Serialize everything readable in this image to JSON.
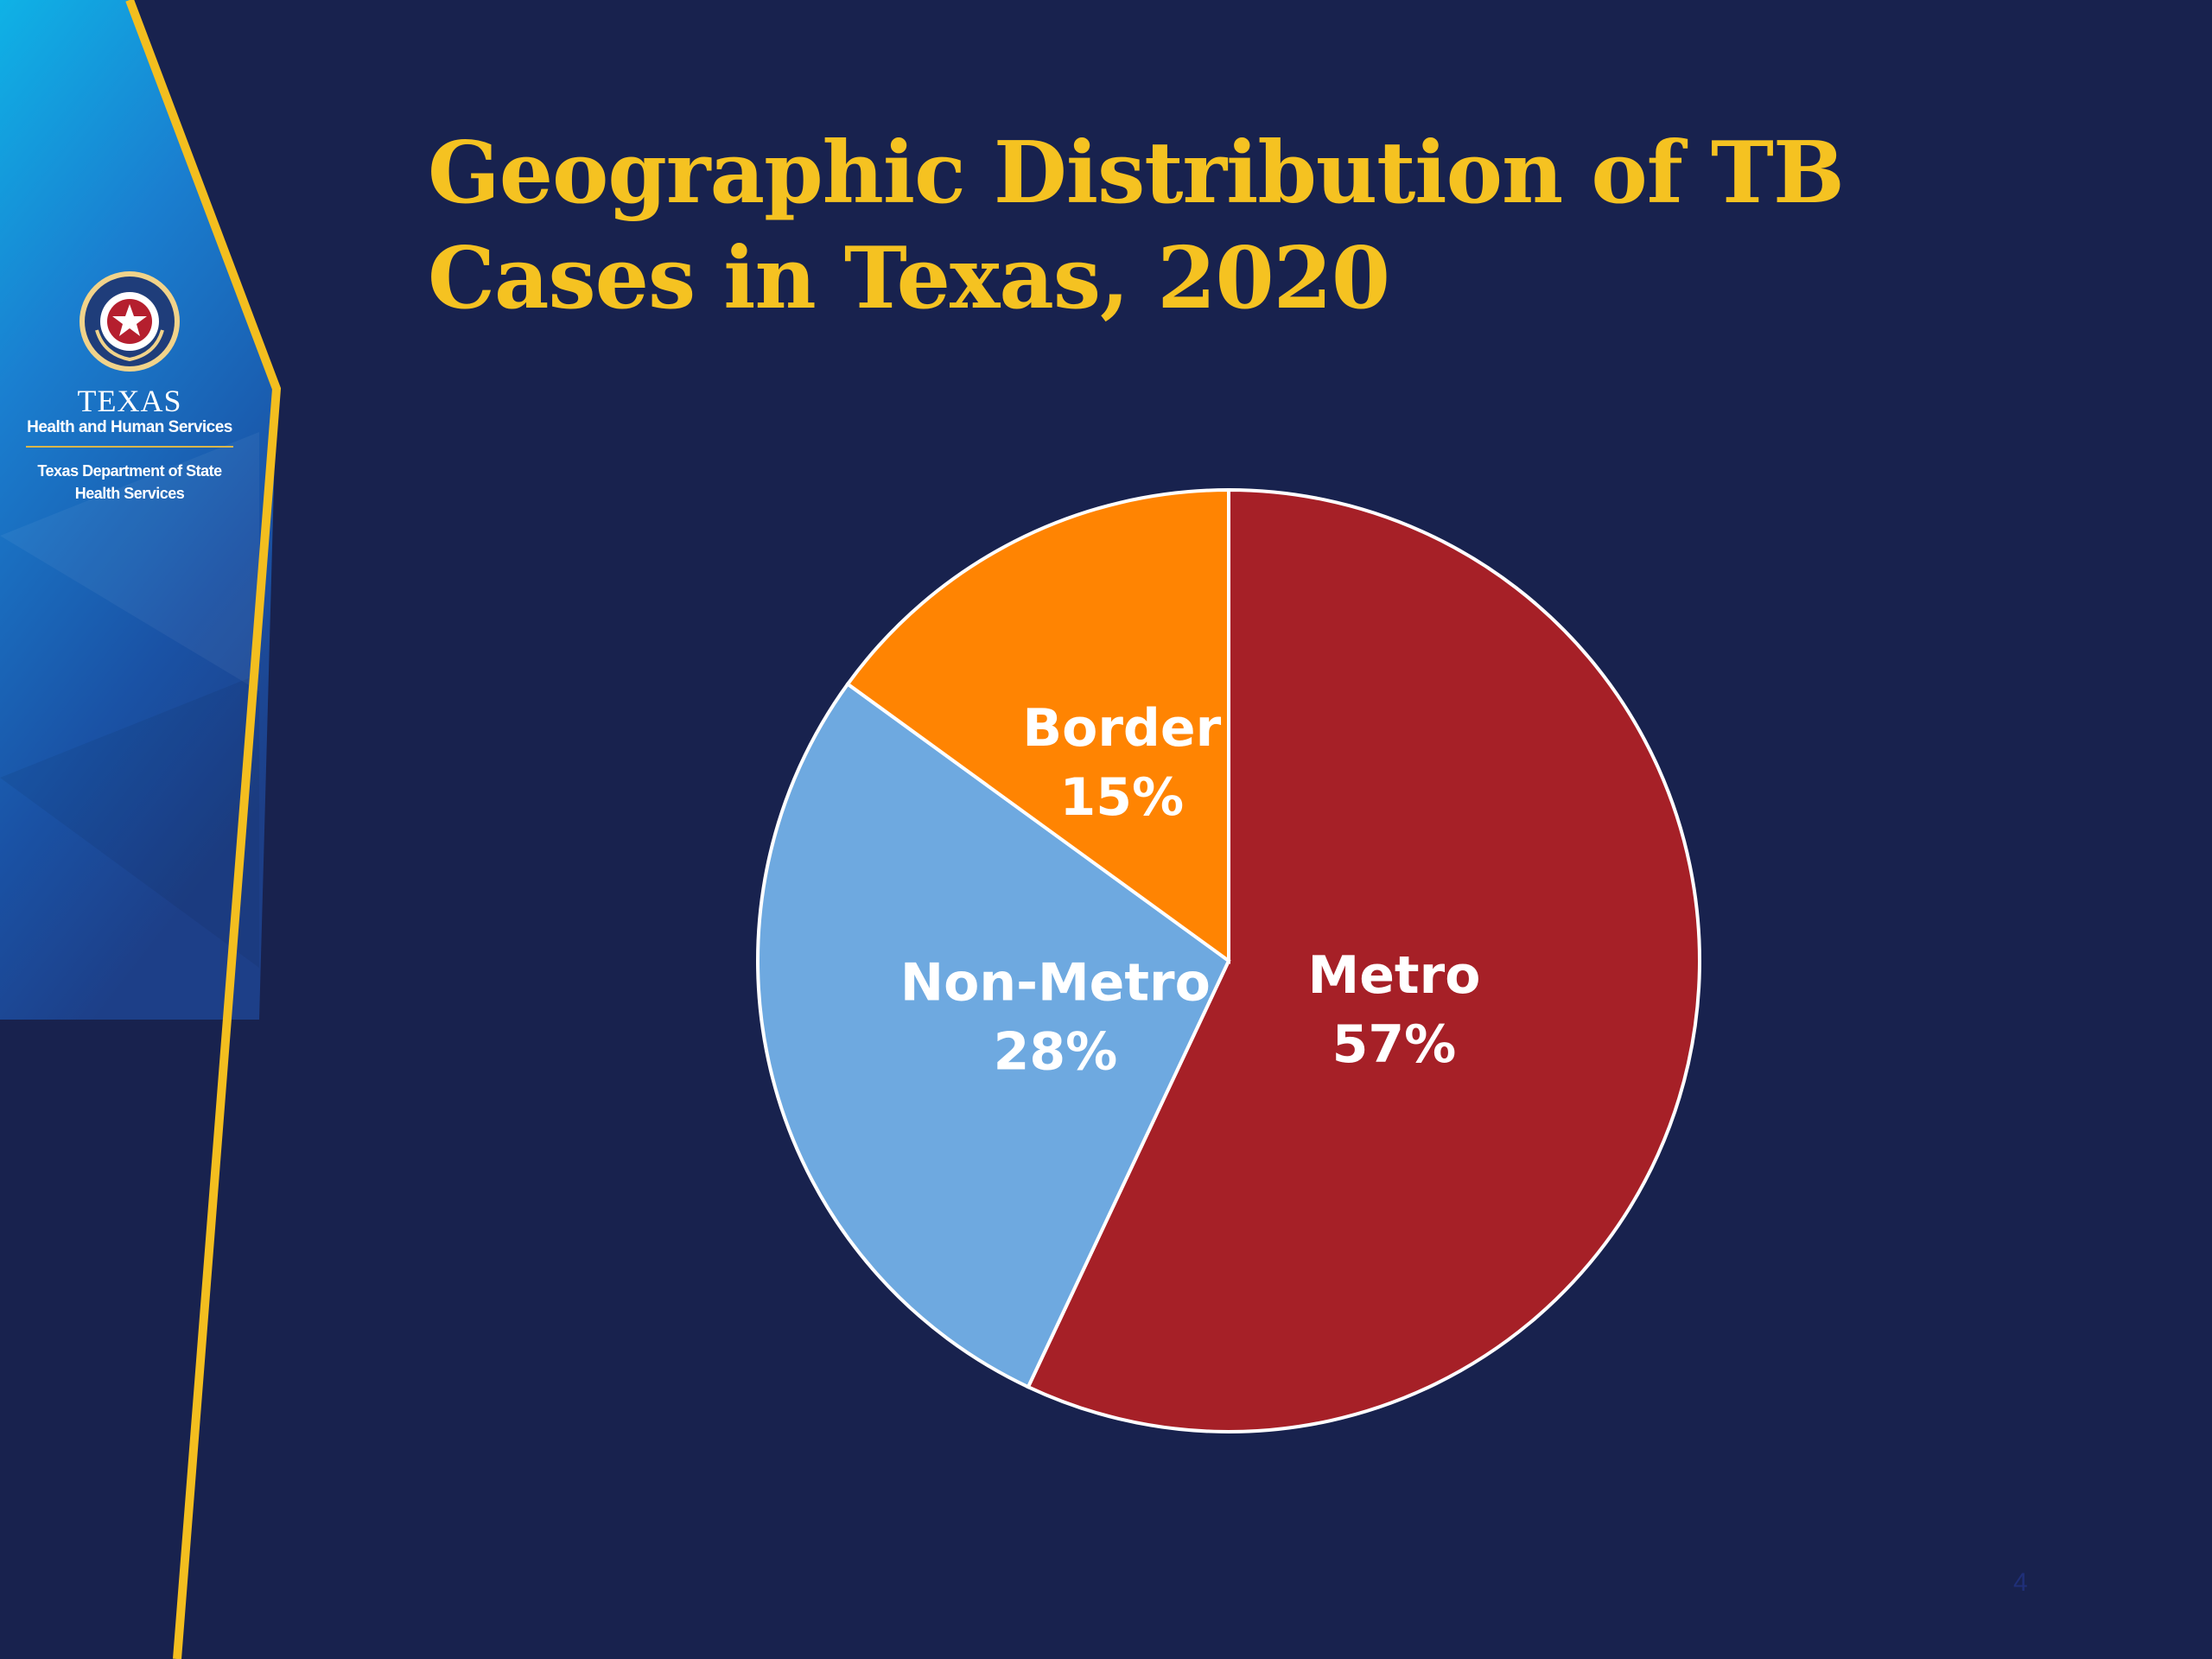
{
  "slide": {
    "title_line1": "Geographic Distribution of TB",
    "title_line2": "Cases in Texas, 2020",
    "slide_number": "4"
  },
  "logo": {
    "name": "TEXAS",
    "agency": "Health and Human Services",
    "department_line1": "Texas Department of State",
    "department_line2": "Health Services"
  },
  "colors": {
    "background": "#18224e",
    "title": "#f5c221",
    "accent_stripe": "#f3be1f"
  },
  "chart_data": {
    "type": "pie",
    "title": "Geographic Distribution of TB Cases in Texas, 2020",
    "start_angle_deg": 0,
    "direction": "clockwise",
    "slices": [
      {
        "name": "Metro",
        "value": 57,
        "label": "57%",
        "color": "#a62027"
      },
      {
        "name": "Non-Metro",
        "value": 28,
        "label": "28%",
        "color": "#6ea9e0"
      },
      {
        "name": "Border",
        "value": 15,
        "label": "15%",
        "color": "#ff8402"
      }
    ]
  }
}
